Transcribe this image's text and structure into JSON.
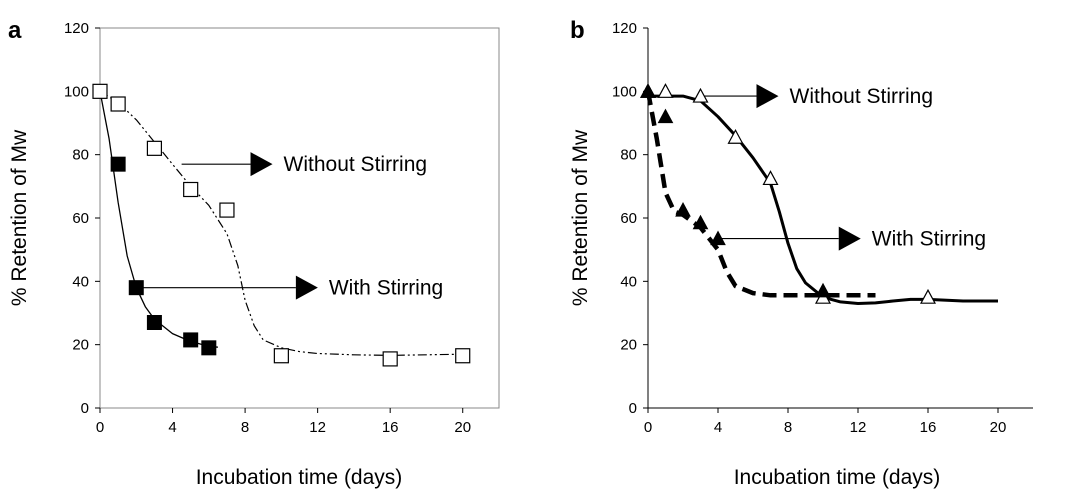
{
  "chart_data": [
    {
      "panel": "a",
      "type": "scatter",
      "xlabel": "Incubation time (days)",
      "ylabel": "% Retention of Mw",
      "xlim": [
        0,
        22
      ],
      "ylim": [
        0,
        120
      ],
      "xticks": [
        "0",
        "4",
        "8",
        "12",
        "16",
        "20"
      ],
      "yticks": [
        "0",
        "20",
        "40",
        "60",
        "80",
        "100",
        "120"
      ],
      "grid": false,
      "series": [
        {
          "marker": "square-open",
          "line": "dash-dot-dot",
          "points": [
            [
              0,
              100
            ],
            [
              1,
              96
            ],
            [
              3,
              82
            ],
            [
              5,
              69
            ],
            [
              7,
              62.5
            ],
            [
              10,
              16.5
            ],
            [
              16,
              15.5
            ],
            [
              20,
              16.5
            ]
          ],
          "curve": [
            [
              0,
              100
            ],
            [
              1,
              96.5
            ],
            [
              2,
              91
            ],
            [
              3,
              84
            ],
            [
              4,
              77
            ],
            [
              5,
              70
            ],
            [
              6,
              64
            ],
            [
              7,
              55
            ],
            [
              7.6,
              45
            ],
            [
              8,
              34
            ],
            [
              8.5,
              26
            ],
            [
              9,
              21.5
            ],
            [
              10,
              19
            ],
            [
              11,
              17.8
            ],
            [
              12,
              17.2
            ],
            [
              14,
              16.8
            ],
            [
              16,
              16.6
            ],
            [
              18,
              16.8
            ],
            [
              20,
              17
            ]
          ]
        },
        {
          "marker": "square-filled",
          "line": "solid-thin",
          "points": [
            [
              1,
              77
            ],
            [
              2,
              38
            ],
            [
              3,
              27
            ],
            [
              5,
              21.5
            ],
            [
              6,
              19
            ]
          ],
          "curve": [
            [
              0,
              100
            ],
            [
              0.5,
              85
            ],
            [
              1,
              65
            ],
            [
              1.5,
              48
            ],
            [
              2,
              38
            ],
            [
              2.5,
              32
            ],
            [
              3,
              28
            ],
            [
              4,
              23.5
            ],
            [
              5,
              21
            ],
            [
              6,
              19.5
            ],
            [
              6.5,
              19.2
            ]
          ]
        }
      ],
      "annotations": [
        {
          "text": "Without Stirring",
          "arrow_from": [
            4.5,
            77
          ],
          "arrow_to": [
            8.3,
            77
          ]
        },
        {
          "text": "With Stirring",
          "arrow_from": [
            2,
            38
          ],
          "arrow_to": [
            10.8,
            38
          ]
        }
      ]
    },
    {
      "panel": "b",
      "type": "scatter",
      "xlabel": "Incubation time (days)",
      "ylabel": "% Retention of Mw",
      "xlim": [
        0,
        22
      ],
      "ylim": [
        0,
        120
      ],
      "xticks": [
        "0",
        "4",
        "8",
        "12",
        "16",
        "20"
      ],
      "yticks": [
        "0",
        "20",
        "40",
        "60",
        "80",
        "100",
        "120"
      ],
      "grid": false,
      "series": [
        {
          "marker": "triangle-open",
          "line": "solid-thick",
          "points": [
            [
              0,
              100
            ],
            [
              1,
              100
            ],
            [
              3,
              98.5
            ],
            [
              5,
              85.5
            ],
            [
              7,
              72.5
            ],
            [
              10,
              35
            ],
            [
              16,
              35
            ]
          ],
          "curve": [
            [
              0,
              98.5
            ],
            [
              1,
              98.5
            ],
            [
              2,
              98.5
            ],
            [
              3,
              97
            ],
            [
              4,
              92
            ],
            [
              5,
              86
            ],
            [
              6,
              79
            ],
            [
              7,
              71
            ],
            [
              7.5,
              62
            ],
            [
              8,
              52
            ],
            [
              8.5,
              44
            ],
            [
              9,
              39.5
            ],
            [
              10,
              35
            ],
            [
              11,
              33.5
            ],
            [
              12,
              33
            ],
            [
              13,
              33.2
            ],
            [
              14,
              33.8
            ],
            [
              15,
              34.3
            ],
            [
              16,
              34.3
            ],
            [
              18,
              33.8
            ],
            [
              20,
              33.8
            ]
          ]
        },
        {
          "marker": "triangle-filled",
          "line": "dashed-thick",
          "points": [
            [
              0,
              100
            ],
            [
              1,
              92
            ],
            [
              2,
              62.5
            ],
            [
              3,
              58.5
            ],
            [
              4,
              53.5
            ],
            [
              10,
              37
            ]
          ],
          "curve": [
            [
              0,
              100
            ],
            [
              0.5,
              85
            ],
            [
              1,
              68
            ],
            [
              1.5,
              62
            ],
            [
              2,
              61
            ],
            [
              3,
              57
            ],
            [
              4,
              50
            ],
            [
              4.5,
              43
            ],
            [
              5,
              38.5
            ],
            [
              6,
              36.3
            ],
            [
              7,
              35.6
            ],
            [
              10,
              35.6
            ],
            [
              13,
              35.6
            ]
          ]
        }
      ],
      "annotations": [
        {
          "text": "Without Stirring",
          "arrow_from": [
            3.2,
            98.5
          ],
          "arrow_to": [
            6.2,
            98.5
          ]
        },
        {
          "text": "With Stirring",
          "arrow_from": [
            4,
            53.5
          ],
          "arrow_to": [
            10.9,
            53.5
          ]
        }
      ]
    }
  ]
}
